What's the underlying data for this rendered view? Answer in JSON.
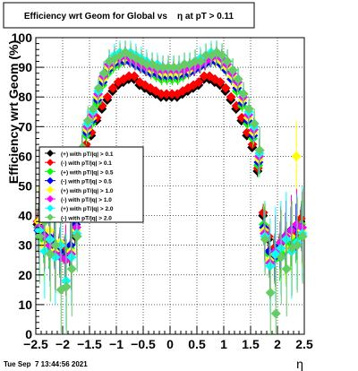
{
  "chart_data": {
    "type": "scatter",
    "title": "Efficiency wrt Geom for Global vs    η at pT > 0.11",
    "xlabel": "η",
    "ylabel": "Efficiency wrt Geom (%)",
    "xlim": [
      -2.5,
      2.5
    ],
    "ylim": [
      0,
      100
    ],
    "xticks": [
      -2.5,
      -2,
      -1.5,
      -1,
      -0.5,
      0,
      0.5,
      1,
      1.5,
      2,
      2.5
    ],
    "xtick_labels": [
      "−2.5",
      "−2",
      "−1.5",
      "−1",
      "−0.5",
      "0",
      "0.5",
      "1",
      "1.5",
      "2",
      "2.5"
    ],
    "yticks": [
      0,
      10,
      20,
      30,
      40,
      50,
      60,
      70,
      80,
      90,
      100
    ],
    "ytick_labels": [
      "0",
      "10",
      "20",
      "30",
      "40",
      "50",
      "60",
      "70",
      "80",
      "90",
      "100"
    ],
    "grid": true,
    "legend_position": "middle-left",
    "series": [
      {
        "name": "(+) with pT/|q| > 0.1",
        "color": "#000000",
        "x": [
          -2.45,
          -2.35,
          -2.25,
          -2.15,
          -2.05,
          -1.95,
          -1.85,
          -1.75,
          -1.65,
          -1.55,
          -1.45,
          -1.35,
          -1.25,
          -1.15,
          -1.05,
          -0.95,
          -0.85,
          -0.75,
          -0.65,
          -0.55,
          -0.45,
          -0.35,
          -0.25,
          -0.15,
          -0.05,
          0.05,
          0.15,
          0.25,
          0.35,
          0.45,
          0.55,
          0.65,
          0.75,
          0.85,
          0.95,
          1.05,
          1.15,
          1.25,
          1.35,
          1.45,
          1.55,
          1.65,
          1.75,
          1.85,
          1.95,
          2.05,
          2.15,
          2.25,
          2.35,
          2.45
        ],
        "y": [
          37,
          33,
          31,
          30,
          29,
          28,
          27,
          33,
          55,
          63,
          67,
          72,
          76,
          79,
          82,
          84,
          85,
          86,
          86,
          84,
          83,
          82,
          81,
          80,
          80,
          80,
          80,
          81,
          82,
          83,
          84,
          86,
          86,
          85,
          84,
          82,
          79,
          76,
          72,
          67,
          63,
          55,
          40,
          32,
          28,
          29,
          30,
          31,
          33,
          38
        ],
        "yerr": [
          4,
          4,
          4,
          4,
          4,
          4,
          4,
          3,
          2,
          1.5,
          1,
          1,
          1,
          1,
          1,
          1,
          1,
          1,
          1,
          1,
          1,
          1,
          1,
          1,
          1,
          1,
          1,
          1,
          1,
          1,
          1,
          1,
          1,
          1,
          1,
          1,
          1,
          1,
          1,
          1,
          1.5,
          2,
          3,
          4,
          4,
          4,
          4,
          4,
          4,
          4
        ]
      },
      {
        "name": "(-) with pT/|q| > 0.1",
        "color": "#ff0000",
        "x": [
          -2.45,
          -2.35,
          -2.25,
          -2.15,
          -2.05,
          -1.95,
          -1.85,
          -1.75,
          -1.65,
          -1.55,
          -1.45,
          -1.35,
          -1.25,
          -1.15,
          -1.05,
          -0.95,
          -0.85,
          -0.75,
          -0.65,
          -0.55,
          -0.45,
          -0.35,
          -0.25,
          -0.15,
          -0.05,
          0.05,
          0.15,
          0.25,
          0.35,
          0.45,
          0.55,
          0.65,
          0.75,
          0.85,
          0.95,
          1.05,
          1.15,
          1.25,
          1.35,
          1.45,
          1.55,
          1.65,
          1.75,
          1.85,
          1.95,
          2.05,
          2.15,
          2.25,
          2.35,
          2.45
        ],
        "y": [
          38,
          34,
          32,
          31,
          30,
          29,
          28,
          34,
          56,
          64,
          68,
          73,
          77,
          80,
          83,
          85,
          86,
          87,
          87,
          85,
          84,
          83,
          82,
          81,
          81,
          81,
          81,
          82,
          83,
          84,
          85,
          87,
          87,
          86,
          85,
          83,
          80,
          77,
          73,
          68,
          64,
          56,
          41,
          33,
          29,
          30,
          31,
          32,
          34,
          39
        ],
        "yerr": [
          4,
          4,
          4,
          4,
          4,
          4,
          4,
          3,
          2,
          1.5,
          1,
          1,
          1,
          1,
          1,
          1,
          1,
          1,
          1,
          1,
          1,
          1,
          1,
          1,
          1,
          1,
          1,
          1,
          1,
          1,
          1,
          1,
          1,
          1,
          1,
          1,
          1,
          1,
          1,
          1,
          1.5,
          2,
          3,
          4,
          4,
          4,
          4,
          4,
          4,
          4
        ]
      },
      {
        "name": "(+) with pT/|q| > 0.5",
        "color": "#00ff00",
        "x": [
          -2.45,
          -2.35,
          -2.25,
          -2.15,
          -2.05,
          -1.95,
          -1.85,
          -1.75,
          -1.65,
          -1.55,
          -1.45,
          -1.35,
          -1.25,
          -1.15,
          -1.05,
          -0.95,
          -0.85,
          -0.75,
          -0.65,
          -0.55,
          -0.45,
          -0.35,
          -0.25,
          -0.15,
          -0.05,
          0.05,
          0.15,
          0.25,
          0.35,
          0.45,
          0.55,
          0.65,
          0.75,
          0.85,
          0.95,
          1.05,
          1.15,
          1.25,
          1.35,
          1.45,
          1.55,
          1.65,
          1.75,
          1.85,
          1.95,
          2.05,
          2.15,
          2.25,
          2.35,
          2.45
        ],
        "y": [
          36,
          32,
          30,
          31,
          27,
          25,
          29,
          36,
          58,
          67,
          71,
          78,
          84,
          88,
          90,
          91,
          92,
          92,
          91,
          90,
          89,
          88,
          87,
          86,
          86,
          86,
          86,
          87,
          88,
          89,
          90,
          91,
          92,
          92,
          91,
          89,
          86,
          82,
          77,
          71,
          66,
          57,
          37,
          27,
          25,
          26,
          28,
          30,
          32,
          37
        ],
        "yerr": [
          8,
          8,
          8,
          8,
          8,
          8,
          8,
          6,
          4,
          3,
          2,
          2,
          2,
          2,
          2,
          2,
          2,
          2,
          2,
          2,
          2,
          2,
          2,
          2,
          2,
          2,
          2,
          2,
          2,
          2,
          2,
          2,
          2,
          2,
          2,
          2,
          2,
          2,
          2,
          2,
          3,
          4,
          6,
          8,
          8,
          8,
          8,
          8,
          8,
          8
        ]
      },
      {
        "name": "(-) with pT/|q| > 0.5",
        "color": "#0000ff",
        "x": [
          -2.45,
          -2.35,
          -2.25,
          -2.15,
          -2.05,
          -1.95,
          -1.85,
          -1.75,
          -1.65,
          -1.55,
          -1.45,
          -1.35,
          -1.25,
          -1.15,
          -1.05,
          -0.95,
          -0.85,
          -0.75,
          -0.65,
          -0.55,
          -0.45,
          -0.35,
          -0.25,
          -0.15,
          -0.05,
          0.05,
          0.15,
          0.25,
          0.35,
          0.45,
          0.55,
          0.65,
          0.75,
          0.85,
          0.95,
          1.05,
          1.15,
          1.25,
          1.35,
          1.45,
          1.55,
          1.65,
          1.75,
          1.85,
          1.95,
          2.05,
          2.15,
          2.25,
          2.35,
          2.45
        ],
        "y": [
          35,
          34,
          33,
          30,
          28,
          26,
          30,
          37,
          59,
          68,
          72,
          79,
          85,
          89,
          91,
          92,
          92,
          92,
          91,
          90,
          89,
          88,
          88,
          87,
          87,
          87,
          87,
          88,
          88,
          89,
          90,
          91,
          92,
          92,
          91,
          89,
          86,
          83,
          78,
          72,
          67,
          58,
          36,
          28,
          26,
          30,
          33,
          35,
          36,
          36
        ],
        "yerr": [
          8,
          8,
          8,
          8,
          8,
          8,
          8,
          6,
          4,
          3,
          2,
          2,
          2,
          2,
          2,
          2,
          2,
          2,
          2,
          2,
          2,
          2,
          2,
          2,
          2,
          2,
          2,
          2,
          2,
          2,
          2,
          2,
          2,
          2,
          2,
          2,
          2,
          2,
          2,
          2,
          3,
          4,
          6,
          8,
          8,
          8,
          8,
          8,
          8,
          8
        ]
      },
      {
        "name": "(+) with pT/|q| > 1.0",
        "color": "#ffff00",
        "x": [
          -2.45,
          -2.35,
          -2.25,
          -2.15,
          -2.05,
          -1.95,
          -1.85,
          -1.75,
          -1.65,
          -1.55,
          -1.45,
          -1.35,
          -1.25,
          -1.15,
          -1.05,
          -0.95,
          -0.85,
          -0.75,
          -0.65,
          -0.55,
          -0.45,
          -0.35,
          -0.25,
          -0.15,
          -0.05,
          0.05,
          0.15,
          0.25,
          0.35,
          0.45,
          0.55,
          0.65,
          0.75,
          0.85,
          0.95,
          1.05,
          1.15,
          1.25,
          1.35,
          1.45,
          1.55,
          1.65,
          1.75,
          1.85,
          1.95,
          2.05,
          2.15,
          2.25,
          2.35,
          2.45
        ],
        "y": [
          38,
          30,
          35,
          28,
          31,
          25,
          28,
          35,
          60,
          69,
          73,
          80,
          86,
          90,
          92,
          93,
          93,
          93,
          92,
          91,
          90,
          89,
          89,
          88,
          88,
          88,
          88,
          89,
          89,
          90,
          91,
          92,
          93,
          93,
          92,
          90,
          87,
          84,
          79,
          73,
          68,
          59,
          35,
          25,
          27,
          31,
          29,
          33,
          60,
          35
        ],
        "yerr": [
          12,
          12,
          12,
          12,
          12,
          12,
          12,
          9,
          6,
          4,
          3,
          3,
          3,
          3,
          3,
          3,
          3,
          3,
          3,
          3,
          3,
          3,
          3,
          3,
          3,
          3,
          3,
          3,
          3,
          3,
          3,
          3,
          3,
          3,
          3,
          3,
          3,
          3,
          3,
          3,
          4,
          6,
          9,
          12,
          12,
          12,
          12,
          12,
          12,
          12
        ]
      },
      {
        "name": "(-) with pT/|q| > 1.0",
        "color": "#ff00ff",
        "x": [
          -2.45,
          -2.35,
          -2.25,
          -2.15,
          -2.05,
          -1.95,
          -1.85,
          -1.75,
          -1.65,
          -1.55,
          -1.45,
          -1.35,
          -1.25,
          -1.15,
          -1.05,
          -0.95,
          -0.85,
          -0.75,
          -0.65,
          -0.55,
          -0.45,
          -0.35,
          -0.25,
          -0.15,
          -0.05,
          0.05,
          0.15,
          0.25,
          0.35,
          0.45,
          0.55,
          0.65,
          0.75,
          0.85,
          0.95,
          1.05,
          1.15,
          1.25,
          1.35,
          1.45,
          1.55,
          1.65,
          1.75,
          1.85,
          1.95,
          2.05,
          2.15,
          2.25,
          2.35,
          2.45
        ],
        "y": [
          36,
          33,
          30,
          27,
          26,
          25,
          27,
          36,
          61,
          70,
          74,
          81,
          87,
          91,
          93,
          93,
          94,
          93,
          92,
          91,
          90,
          90,
          89,
          89,
          89,
          89,
          89,
          89,
          90,
          90,
          91,
          92,
          93,
          94,
          93,
          91,
          88,
          85,
          80,
          74,
          69,
          60,
          34,
          24,
          28,
          31,
          33,
          35,
          37,
          36
        ],
        "yerr": [
          12,
          12,
          12,
          12,
          12,
          12,
          12,
          9,
          6,
          4,
          3,
          3,
          3,
          3,
          3,
          3,
          3,
          3,
          3,
          3,
          3,
          3,
          3,
          3,
          3,
          3,
          3,
          3,
          3,
          3,
          3,
          3,
          3,
          3,
          3,
          3,
          3,
          3,
          3,
          3,
          4,
          6,
          9,
          12,
          12,
          12,
          12,
          12,
          12,
          12
        ]
      },
      {
        "name": "(+) with pT/|q| > 2.0",
        "color": "#00ffff",
        "x": [
          -2.45,
          -2.35,
          -2.25,
          -2.15,
          -2.05,
          -1.95,
          -1.85,
          -1.75,
          -1.65,
          -1.55,
          -1.45,
          -1.35,
          -1.25,
          -1.15,
          -1.05,
          -0.95,
          -0.85,
          -0.75,
          -0.65,
          -0.55,
          -0.45,
          -0.35,
          -0.25,
          -0.15,
          -0.05,
          0.05,
          0.15,
          0.25,
          0.35,
          0.45,
          0.55,
          0.65,
          0.75,
          0.85,
          0.95,
          1.05,
          1.15,
          1.25,
          1.35,
          1.45,
          1.55,
          1.65,
          1.75,
          1.85,
          1.95,
          2.05,
          2.15,
          2.25,
          2.35,
          2.45
        ],
        "y": [
          35,
          28,
          32,
          26,
          30,
          18,
          26,
          34,
          62,
          71,
          75,
          82,
          88,
          92,
          94,
          95,
          95,
          95,
          94,
          93,
          92,
          91,
          91,
          90,
          90,
          90,
          90,
          91,
          91,
          92,
          93,
          94,
          95,
          95,
          94,
          92,
          89,
          86,
          81,
          75,
          70,
          61,
          33,
          23,
          27,
          29,
          32,
          28,
          31,
          34
        ],
        "yerr": [
          16,
          16,
          16,
          16,
          16,
          16,
          16,
          12,
          8,
          5,
          4,
          4,
          4,
          4,
          4,
          4,
          4,
          4,
          4,
          4,
          4,
          4,
          4,
          4,
          4,
          4,
          4,
          4,
          4,
          4,
          4,
          4,
          4,
          4,
          4,
          4,
          4,
          4,
          4,
          4,
          5,
          8,
          12,
          16,
          16,
          16,
          16,
          16,
          16,
          16
        ]
      },
      {
        "name": "(-) with pT/|q| > 2.0",
        "color": "#66cc66",
        "x": [
          -2.45,
          -2.35,
          -2.25,
          -2.15,
          -2.05,
          -1.95,
          -1.85,
          -1.75,
          -1.65,
          -1.55,
          -1.45,
          -1.35,
          -1.25,
          -1.15,
          -1.05,
          -0.95,
          -0.85,
          -0.75,
          -0.65,
          -0.55,
          -0.45,
          -0.35,
          -0.25,
          -0.15,
          -0.05,
          0.05,
          0.15,
          0.25,
          0.35,
          0.45,
          0.55,
          0.65,
          0.75,
          0.85,
          0.95,
          1.05,
          1.15,
          1.25,
          1.35,
          1.45,
          1.55,
          1.65,
          1.75,
          1.85,
          1.95,
          2.05,
          2.15,
          2.25,
          2.35,
          2.45
        ],
        "y": [
          33,
          38,
          27,
          30,
          15,
          16,
          22,
          33,
          63,
          72,
          76,
          83,
          88,
          92,
          93,
          94,
          95,
          94,
          93,
          92,
          91,
          91,
          90,
          90,
          90,
          90,
          90,
          91,
          91,
          92,
          92,
          94,
          94,
          95,
          94,
          92,
          89,
          86,
          81,
          76,
          71,
          62,
          32,
          14,
          7,
          26,
          22,
          29,
          30,
          33
        ],
        "yerr": [
          16,
          16,
          16,
          16,
          16,
          16,
          16,
          12,
          8,
          5,
          4,
          4,
          4,
          4,
          4,
          4,
          4,
          4,
          4,
          4,
          4,
          4,
          4,
          4,
          4,
          4,
          4,
          4,
          4,
          4,
          4,
          4,
          4,
          4,
          4,
          4,
          4,
          4,
          4,
          4,
          5,
          8,
          12,
          16,
          16,
          16,
          16,
          16,
          16,
          16
        ]
      }
    ]
  },
  "footer": {
    "timestamp": "Tue Sep  7 13:44:56 2021"
  }
}
